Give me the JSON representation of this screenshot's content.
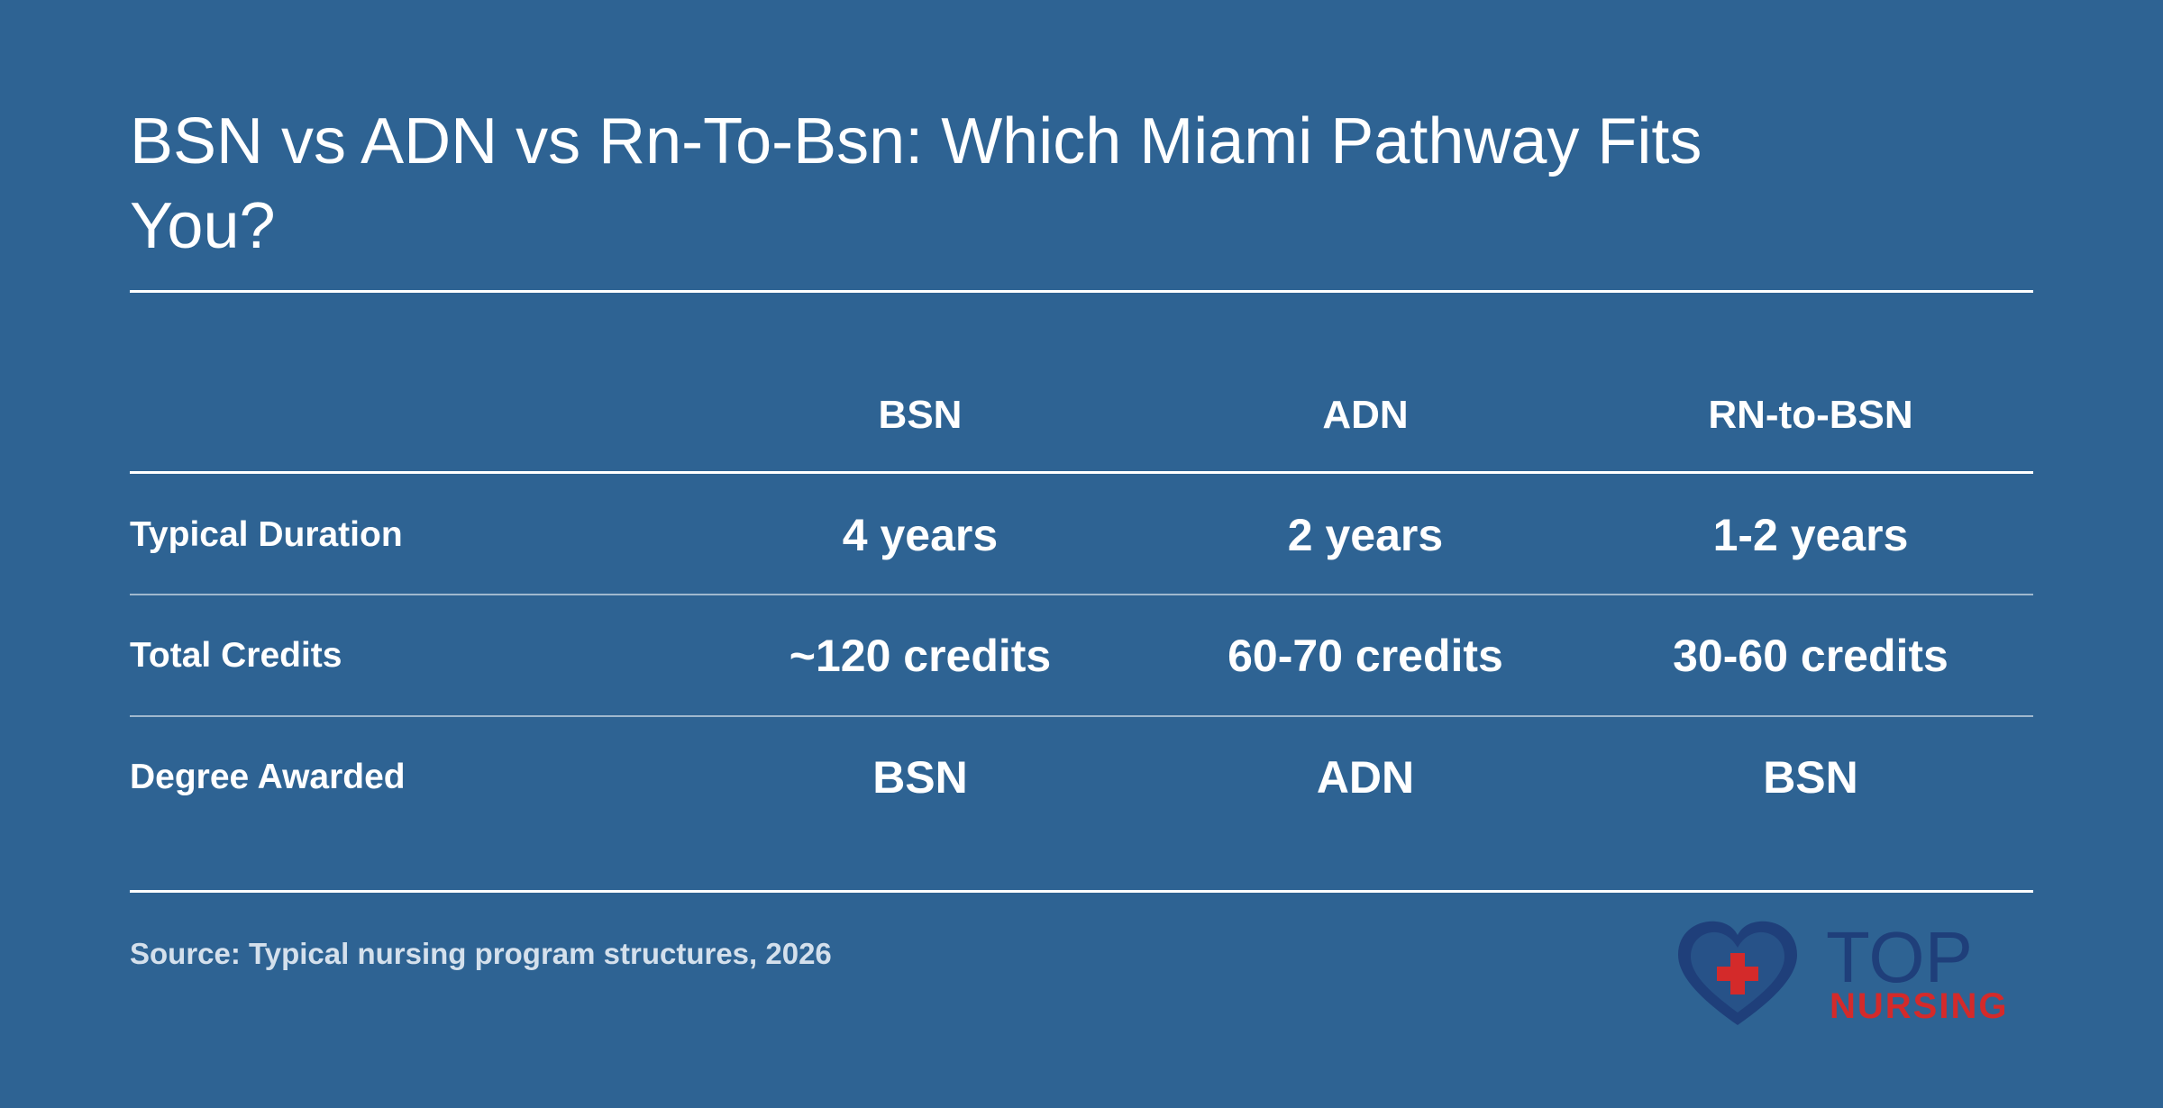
{
  "title": "BSN vs ADN vs Rn-To-Bsn: Which Miami Pathway Fits You?",
  "source": "Source: Typical nursing program structures, 2026",
  "logo": {
    "text_top": "TOP",
    "text_bottom": "NURSING",
    "icon": "heart-cross-icon",
    "colors": {
      "heart": "#1f3f7a",
      "cross": "#d42a2a",
      "top_text": "#1f3f7a",
      "bottom_text": "#d42a2a"
    }
  },
  "colors": {
    "background": "#2e6393",
    "text": "#ffffff",
    "source_text": "#d4e0ec"
  },
  "chart_data": {
    "type": "table",
    "columns": [
      "",
      "BSN",
      "ADN",
      "RN-to-BSN"
    ],
    "rows": [
      {
        "label": "Typical Duration",
        "values": [
          "4 years",
          "2 years",
          "1-2 years"
        ]
      },
      {
        "label": "Total Credits",
        "values": [
          "~120 credits",
          "60-70 credits",
          "30-60 credits"
        ]
      },
      {
        "label": "Degree Awarded",
        "values": [
          "BSN",
          "ADN",
          "BSN"
        ]
      }
    ]
  }
}
